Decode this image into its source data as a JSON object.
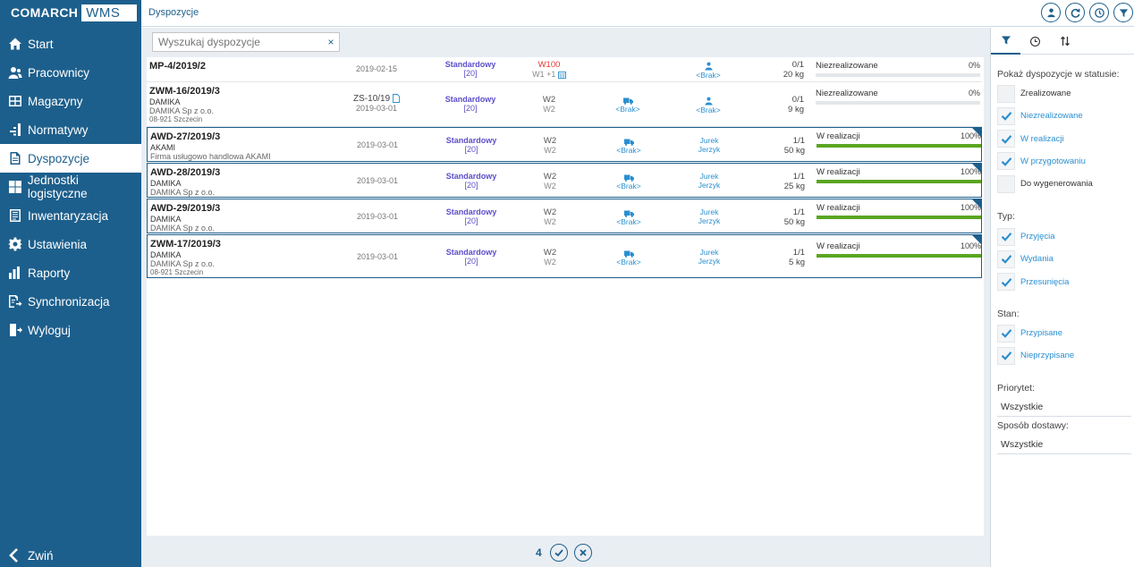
{
  "brand": {
    "company": "COMARCH",
    "product": "WMS"
  },
  "header": {
    "title": "Dyspozycje",
    "buttons": [
      {
        "name": "assign-user-icon"
      },
      {
        "name": "refresh-icon"
      },
      {
        "name": "history-icon"
      },
      {
        "name": "filter-icon"
      }
    ]
  },
  "nav": {
    "items": [
      {
        "label": "Start",
        "icon": "home-icon"
      },
      {
        "label": "Pracownicy",
        "icon": "users-icon"
      },
      {
        "label": "Magazyny",
        "icon": "warehouse-icon"
      },
      {
        "label": "Normatywy",
        "icon": "norms-icon"
      },
      {
        "label": "Dyspozycje",
        "icon": "document-icon",
        "active": true
      },
      {
        "label": "Jednostki logistyczne",
        "icon": "pallet-icon"
      },
      {
        "label": "Inwentaryzacja",
        "icon": "inventory-icon"
      },
      {
        "label": "Ustawienia",
        "icon": "gear-icon"
      },
      {
        "label": "Raporty",
        "icon": "chart-icon"
      },
      {
        "label": "Synchronizacja",
        "icon": "sync-icon"
      },
      {
        "label": "Wyloguj",
        "icon": "logout-icon"
      }
    ],
    "collapse_label": "Zwiń"
  },
  "search": {
    "placeholder": "Wyszukaj dyspozycje",
    "value": "",
    "clear": "×"
  },
  "rows": [
    {
      "number": "MP-4/2019/2",
      "line1": "",
      "line2": "",
      "line3": "",
      "doc_ref": "",
      "date": "2019-02-15",
      "type": "Standardowy",
      "priority": "[20]",
      "wh1": "W100",
      "wh2": "W1 +1",
      "wh_red": true,
      "delivery": "",
      "assignee1": "",
      "assignee2": "<Brak>",
      "assignee_icon": true,
      "qty": "0/1",
      "weight": "20 kg",
      "status": "Niezrealizowane",
      "percent": "0%",
      "progress": 0,
      "selected": false,
      "height": 28
    },
    {
      "number": "ZWM-16/2019/3",
      "line1": "DAMIKA",
      "line2": "DAMIKA Sp z o.o.",
      "line3": "08-921 Szczecin",
      "doc_ref": "ZS-10/19",
      "date": "2019-03-01",
      "type": "Standardowy",
      "priority": "[20]",
      "wh1": "W2",
      "wh2": "W2",
      "wh_red": false,
      "delivery": "<Brak>",
      "assignee1": "",
      "assignee2": "<Brak>",
      "assignee_icon": true,
      "qty": "0/1",
      "weight": "9 kg",
      "status": "Niezrealizowane",
      "percent": "0%",
      "progress": 0,
      "selected": false,
      "height": 50
    },
    {
      "number": "AWD-27/2019/3",
      "line1": "AKAMI",
      "line2": "Firma usługowo handlowa AKAMI",
      "line3": "",
      "doc_ref": "",
      "date": "2019-03-01",
      "type": "Standardowy",
      "priority": "[20]",
      "wh1": "W2",
      "wh2": "W2",
      "wh_red": false,
      "delivery": "<Brak>",
      "assignee1": "Jurek",
      "assignee2": "Jerzyk",
      "assignee_icon": false,
      "qty": "1/1",
      "weight": "50 kg",
      "status": "W realizacji",
      "percent": "100%",
      "progress": 1,
      "selected": true,
      "height": 39
    },
    {
      "number": "AWD-28/2019/3",
      "line1": "DAMIKA",
      "line2": "DAMIKA Sp z o.o.",
      "line3": "",
      "doc_ref": "",
      "date": "2019-03-01",
      "type": "Standardowy",
      "priority": "[20]",
      "wh1": "W2",
      "wh2": "W2",
      "wh_red": false,
      "delivery": "<Brak>",
      "assignee1": "Jurek",
      "assignee2": "Jerzyk",
      "assignee_icon": false,
      "qty": "1/1",
      "weight": "25 kg",
      "status": "W realizacji",
      "percent": "100%",
      "progress": 1,
      "selected": true,
      "height": 39
    },
    {
      "number": "AWD-29/2019/3",
      "line1": "DAMIKA",
      "line2": "DAMIKA Sp z o.o.",
      "line3": "",
      "doc_ref": "",
      "date": "2019-03-01",
      "type": "Standardowy",
      "priority": "[20]",
      "wh1": "W2",
      "wh2": "W2",
      "wh_red": false,
      "delivery": "<Brak>",
      "assignee1": "Jurek",
      "assignee2": "Jerzyk",
      "assignee_icon": false,
      "qty": "1/1",
      "weight": "50 kg",
      "status": "W realizacji",
      "percent": "100%",
      "progress": 1,
      "selected": true,
      "height": 39
    },
    {
      "number": "ZWM-17/2019/3",
      "line1": "DAMIKA",
      "line2": "DAMIKA Sp z o.o.",
      "line3": "08-921 Szczecin",
      "doc_ref": "",
      "date": "2019-03-01",
      "type": "Standardowy",
      "priority": "[20]",
      "wh1": "W2",
      "wh2": "W2",
      "wh_red": false,
      "delivery": "<Brak>",
      "assignee1": "Jurek",
      "assignee2": "Jerzyk",
      "assignee_icon": false,
      "qty": "1/1",
      "weight": "5 kg",
      "status": "W realizacji",
      "percent": "100%",
      "progress": 1,
      "selected": true,
      "height": 49
    }
  ],
  "footer": {
    "count": "4"
  },
  "filter": {
    "status_title": "Pokaż dyspozycje w statusie:",
    "status_options": [
      {
        "label": "Zrealizowane",
        "checked": false
      },
      {
        "label": "Niezrealizowane",
        "checked": true
      },
      {
        "label": "W realizacji",
        "checked": true
      },
      {
        "label": "W przygotowaniu",
        "checked": true
      },
      {
        "label": "Do wygenerowania",
        "checked": false
      }
    ],
    "type_title": "Typ:",
    "type_options": [
      {
        "label": "Przyjęcia",
        "checked": true
      },
      {
        "label": "Wydania",
        "checked": true
      },
      {
        "label": "Przesunięcia",
        "checked": true
      }
    ],
    "state_title": "Stan:",
    "state_options": [
      {
        "label": "Przypisane",
        "checked": true
      },
      {
        "label": "Nieprzypisane",
        "checked": true
      }
    ],
    "priority_title": "Priorytet:",
    "priority_value": "Wszystkie",
    "delivery_title": "Sposób dostawy:",
    "delivery_value": "Wszystkie"
  },
  "colors": {
    "primary": "#1d5f8c",
    "accent": "#2a8fd0",
    "progress": "#5aa621",
    "type": "#5b4ec9",
    "warning": "#e53935"
  }
}
